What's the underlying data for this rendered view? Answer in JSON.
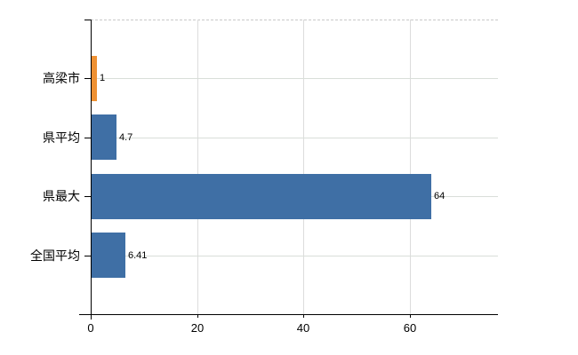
{
  "chart_data": {
    "type": "bar",
    "orientation": "horizontal",
    "title": "",
    "xlabel": "",
    "ylabel": "",
    "categories": [
      "高梁市",
      "県平均",
      "県最大",
      "全国平均"
    ],
    "values": [
      1,
      4.7,
      64,
      6.41
    ],
    "value_labels": [
      "1",
      "4.7",
      "64",
      "6.41"
    ],
    "series_colors": [
      "#ee9133",
      "#3f6fa5",
      "#3f6fa5",
      "#3f6fa5"
    ],
    "x_ticks": [
      0,
      20,
      40,
      60
    ],
    "x_tick_labels": [
      "0",
      "20",
      "40",
      "60"
    ],
    "xlim": [
      0,
      76.7
    ],
    "grid": true,
    "legend": false
  },
  "colors": {
    "highlight_bar": "#ee9133",
    "default_bar": "#3f6fa5",
    "gridline": "#dcdcdc",
    "axis": "#000000",
    "background": "#ffffff"
  }
}
